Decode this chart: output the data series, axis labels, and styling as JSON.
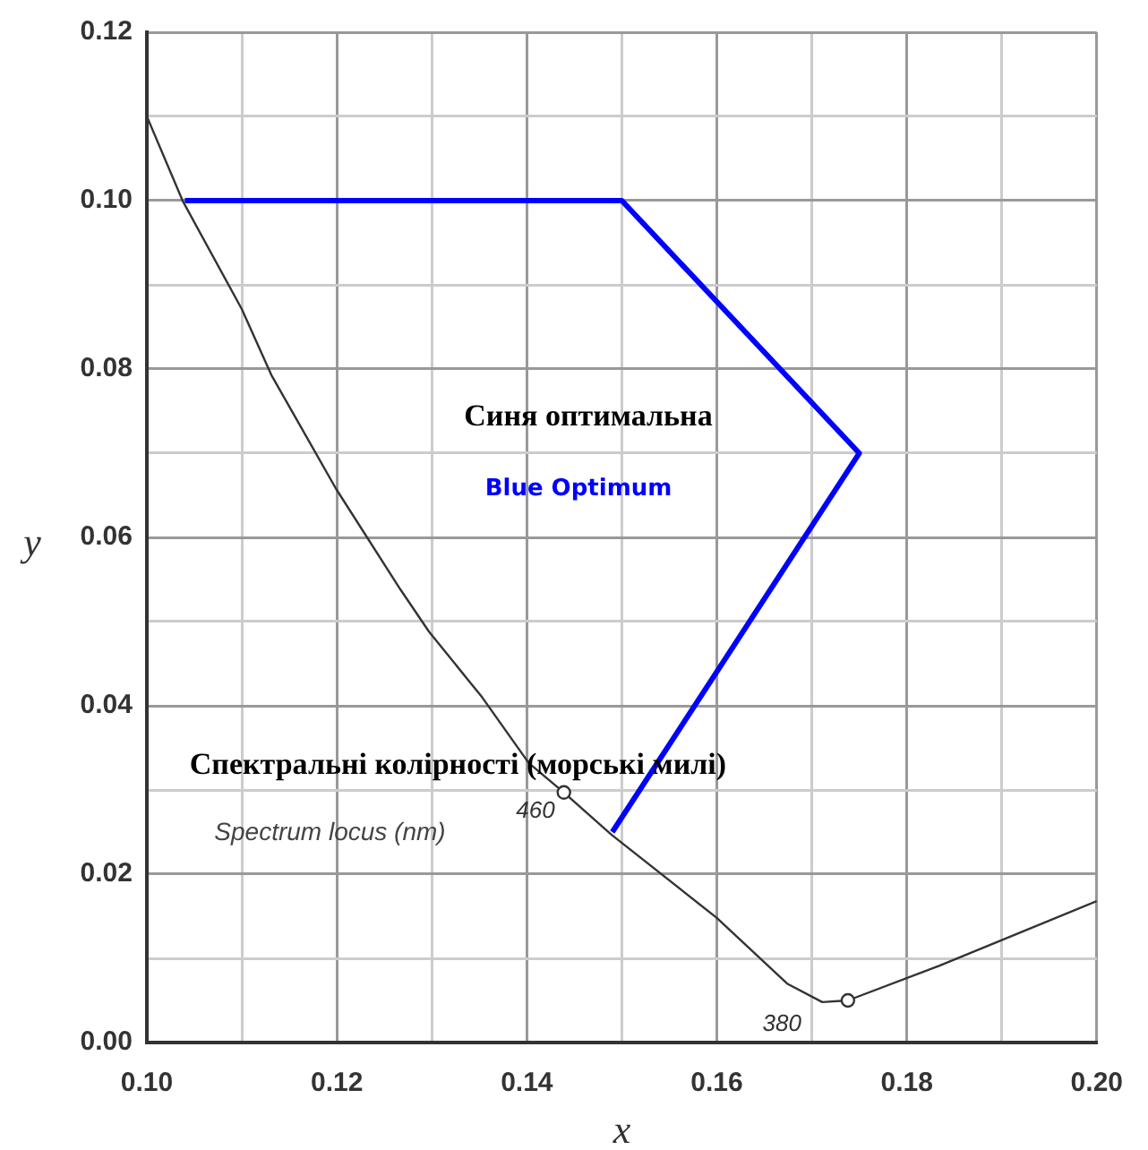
{
  "chart_data": {
    "type": "line",
    "xlabel": "x",
    "ylabel": "y",
    "xlim": [
      0.1,
      0.2
    ],
    "ylim": [
      0.0,
      0.12
    ],
    "xticks": [
      {
        "value": 0.1,
        "label": "0.10"
      },
      {
        "value": 0.11,
        "label": null
      },
      {
        "value": 0.12,
        "label": "0.12"
      },
      {
        "value": 0.13,
        "label": null
      },
      {
        "value": 0.14,
        "label": "0.14"
      },
      {
        "value": 0.15,
        "label": null
      },
      {
        "value": 0.16,
        "label": "0.16"
      },
      {
        "value": 0.17,
        "label": null
      },
      {
        "value": 0.18,
        "label": "0.18"
      },
      {
        "value": 0.19,
        "label": null
      },
      {
        "value": 0.2,
        "label": "0.20"
      }
    ],
    "yticks": [
      {
        "value": 0.0,
        "label": "0.00"
      },
      {
        "value": 0.01,
        "label": null
      },
      {
        "value": 0.02,
        "label": "0.02"
      },
      {
        "value": 0.03,
        "label": null
      },
      {
        "value": 0.04,
        "label": "0.04"
      },
      {
        "value": 0.05,
        "label": null
      },
      {
        "value": 0.06,
        "label": "0.06"
      },
      {
        "value": 0.07,
        "label": null
      },
      {
        "value": 0.08,
        "label": "0.08"
      },
      {
        "value": 0.09,
        "label": null
      },
      {
        "value": 0.1,
        "label": "0.10"
      },
      {
        "value": 0.11,
        "label": null
      },
      {
        "value": 0.12,
        "label": "0.12"
      }
    ],
    "grid": true,
    "marker": "none",
    "line_style": "solid",
    "series": [
      {
        "name": "Blue Optimum",
        "color": "#0000ff",
        "x": [
          0.104,
          0.15,
          0.175,
          0.149
        ],
        "values": [
          0.1,
          0.1,
          0.07,
          0.025
        ]
      },
      {
        "name": "Spectrum locus (nm)",
        "color": "#333333",
        "x": [
          0.1,
          0.1038,
          0.11,
          0.1131,
          0.1199,
          0.1267,
          0.1297,
          0.1353,
          0.1402,
          0.1439,
          0.1489,
          0.16,
          0.1674,
          0.1711,
          0.1738,
          0.1834,
          0.2
        ],
        "values": [
          0.11,
          0.0999,
          0.0871,
          0.0793,
          0.0658,
          0.0538,
          0.0488,
          0.041,
          0.0332,
          0.0297,
          0.0247,
          0.0148,
          0.007,
          0.0048,
          0.005,
          0.0091,
          0.0168
        ]
      },
      {
        "type": "scatter",
        "color": "#333333",
        "marker": "circle",
        "x": [
          0.1439,
          0.1738
        ],
        "values": [
          0.0297,
          0.005
        ]
      }
    ],
    "annotations": [
      "Синя оптимальна",
      "Спектральні колірності (морські милі)",
      {
        "text": "460",
        "x": 0.1439,
        "y": 0.0297
      },
      {
        "text": "380",
        "x": 0.1738,
        "y": 0.005
      }
    ]
  }
}
